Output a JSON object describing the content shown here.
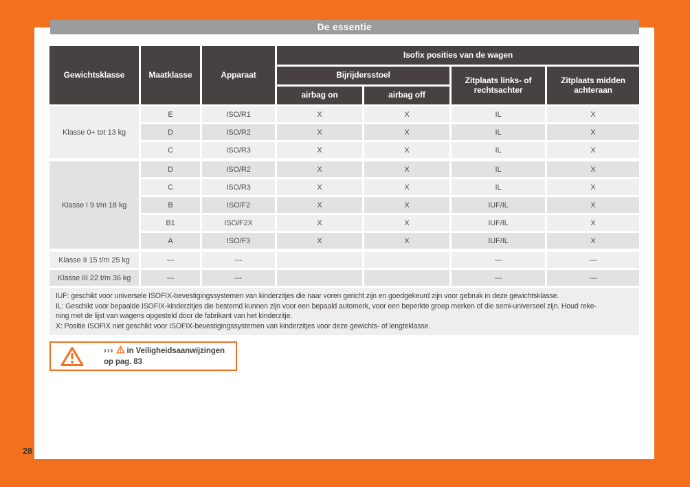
{
  "colors": {
    "orange": "#F2701E",
    "header_dark": "#474241",
    "bar_gray": "#9C9C9C",
    "row_light": "#F0EFEF",
    "row_dark": "#E3E2E2",
    "footnote_bg": "#EFEEEE"
  },
  "page": {
    "number": "28",
    "section_title": "De essentie"
  },
  "table": {
    "headers": {
      "gewichtsklasse": "Gewichtsklasse",
      "maatklasse": "Maatklasse",
      "apparaat": "Apparaat",
      "isofix": "Isofix posities van de wagen",
      "bijrijdersstoel": "Bijrijdersstoel",
      "airbag_on": "airbag on",
      "airbag_off": "airbag off",
      "zitplaats_links": "Zitplaats links- of rechtsachter",
      "zitplaats_midden": "Zitplaats midden achteraan"
    },
    "groups": [
      {
        "label": "Klasse 0+ tot 13 kg",
        "shade": "light",
        "rows": [
          {
            "shade": "light",
            "cells": [
              "E",
              "ISO/R1",
              "X",
              "X",
              "IL",
              "X"
            ]
          },
          {
            "shade": "dark",
            "cells": [
              "D",
              "ISO/R2",
              "X",
              "X",
              "IL",
              "X"
            ]
          },
          {
            "shade": "light",
            "cells": [
              "C",
              "ISO/R3",
              "X",
              "X",
              "IL",
              "X"
            ]
          }
        ]
      },
      {
        "label": "Klasse I 9 t/m 18 kg",
        "shade": "dark",
        "rows": [
          {
            "shade": "dark",
            "cells": [
              "D",
              "ISO/R2",
              "X",
              "X",
              "IL",
              "X"
            ]
          },
          {
            "shade": "light",
            "cells": [
              "C",
              "ISO/R3",
              "X",
              "X",
              "IL",
              "X"
            ]
          },
          {
            "shade": "dark",
            "cells": [
              "B",
              "ISO/F2",
              "X",
              "X",
              "IUF/IL",
              "X"
            ]
          },
          {
            "shade": "light",
            "cells": [
              "B1",
              "ISO/F2X",
              "X",
              "X",
              "IUF/IL",
              "X"
            ]
          },
          {
            "shade": "dark",
            "cells": [
              "A",
              "ISO/F3",
              "X",
              "X",
              "IUF/IL",
              "X"
            ]
          }
        ]
      },
      {
        "label": "Klasse II 15 t/m 25 kg",
        "shade": "light",
        "rows": [
          {
            "shade": "light",
            "cells": [
              "---",
              "---",
              "",
              "",
              "---",
              "---"
            ]
          }
        ]
      },
      {
        "label": "Klasse III 22 t/m 36 kg",
        "shade": "dark",
        "rows": [
          {
            "shade": "dark",
            "cells": [
              "---",
              "---",
              "",
              "",
              "---",
              "---"
            ]
          }
        ]
      }
    ]
  },
  "footnote_lines": [
    "IUF: geschikt voor universele ISOFIX-bevestigingssystemen van kinderzitjes die naar voren gericht zijn en goedgekeurd zijn voor gebruik in deze gewichtsklasse.",
    "IL: Geschikt voor bepaalde ISOFIX-kinderzitjes die bestemd kunnen zijn voor een bepaald automerk, voor een beperkte groep merken of die semi-universeel zijn. Houd reke-",
    "ning met de lijst van wagens opgesteld door de fabrikant van het kinderzitje.",
    "X: Positie ISOFIX niet geschikt voor ISOFIX-bevestigingssystemen van kinderzitjes voor deze gewichts- of lengteklasse."
  ],
  "warning": {
    "chevrons": "›››",
    "text": "in Veiligheidsaanwijzingen op pag. 83"
  }
}
